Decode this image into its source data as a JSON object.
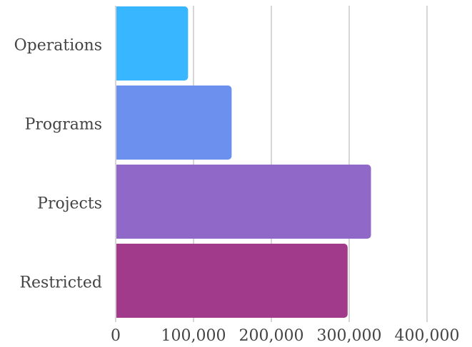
{
  "chart_data": {
    "type": "bar",
    "orientation": "horizontal",
    "categories": [
      "Operations",
      "Programs",
      "Projects",
      "Restricted"
    ],
    "values": [
      93000,
      149000,
      328000,
      298000
    ],
    "colors": [
      "#38B6FF",
      "#6B90EE",
      "#9068C8",
      "#A23A8C"
    ],
    "xlim": [
      0,
      400000
    ],
    "xticks": [
      0,
      100000,
      200000,
      300000,
      400000
    ],
    "xtick_labels": [
      "0",
      "100,000",
      "200,000",
      "300,000",
      "400,000"
    ],
    "grid": "vertical",
    "legend": "none"
  }
}
